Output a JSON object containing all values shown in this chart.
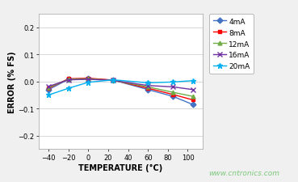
{
  "xlabel": "TEMPERATURE (°C)",
  "ylabel": "ERROR (% FS)",
  "watermark": "www.cntronics.com",
  "xlim": [
    -50,
    115
  ],
  "ylim": [
    -0.25,
    0.25
  ],
  "xticks": [
    -40,
    -20,
    0,
    20,
    40,
    60,
    80,
    100
  ],
  "yticks": [
    -0.2,
    -0.1,
    0.0,
    0.1,
    0.2
  ],
  "series": [
    {
      "label": "4mA",
      "color": "#4472C4",
      "marker": "D",
      "markersize": 3.5,
      "x": [
        -40,
        -20,
        0,
        25,
        60,
        85,
        105
      ],
      "y": [
        -0.03,
        0.008,
        0.01,
        0.005,
        -0.03,
        -0.055,
        -0.085
      ]
    },
    {
      "label": "8mA",
      "color": "#FF0000",
      "marker": "s",
      "markersize": 3.5,
      "x": [
        -40,
        -20,
        0,
        25,
        60,
        85,
        105
      ],
      "y": [
        -0.025,
        0.01,
        0.012,
        0.005,
        -0.025,
        -0.048,
        -0.068
      ]
    },
    {
      "label": "12mA",
      "color": "#70AD47",
      "marker": "^",
      "markersize": 3.5,
      "x": [
        -40,
        -20,
        0,
        25,
        60,
        85,
        105
      ],
      "y": [
        -0.022,
        0.008,
        0.01,
        0.004,
        -0.02,
        -0.04,
        -0.055
      ]
    },
    {
      "label": "16mA",
      "color": "#7030A0",
      "marker": "x",
      "markersize": 4,
      "x": [
        -40,
        -20,
        0,
        25,
        60,
        85,
        105
      ],
      "y": [
        -0.018,
        0.006,
        0.008,
        0.004,
        -0.015,
        -0.02,
        -0.03
      ]
    },
    {
      "label": "20mA",
      "color": "#00B0F0",
      "marker": "*",
      "markersize": 5,
      "x": [
        -40,
        -20,
        0,
        25,
        60,
        85,
        105
      ],
      "y": [
        -0.05,
        -0.025,
        -0.003,
        0.006,
        -0.005,
        -0.002,
        0.003
      ]
    }
  ],
  "background_color": "#F0F0F0",
  "plot_bg_color": "#FFFFFF",
  "grid_color": "#C8C8C8",
  "watermark_color": "#7DC87D",
  "legend_fontsize": 6.5,
  "axis_label_fontsize": 7,
  "tick_fontsize": 6
}
